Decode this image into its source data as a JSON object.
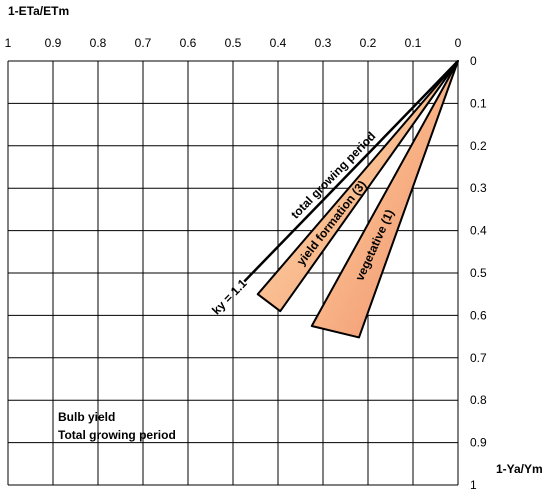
{
  "chart_data": {
    "type": "line",
    "x_axis_title": "1-ETa/ETm",
    "y_axis_title": "1-Ya/Ym",
    "x_ticks": [
      "1",
      "0.9",
      "0.8",
      "0.7",
      "0.6",
      "0.5",
      "0.4",
      "0.3",
      "0.2",
      "0.1",
      "0"
    ],
    "y_ticks": [
      "0",
      "0.1",
      "0.2",
      "0.3",
      "0.4",
      "0.5",
      "0.6",
      "0.7",
      "0.8",
      "0.9",
      "1"
    ],
    "x_tick_values": [
      1,
      0.9,
      0.8,
      0.7,
      0.6,
      0.5,
      0.4,
      0.3,
      0.2,
      0.1,
      0
    ],
    "y_tick_values": [
      0,
      0.1,
      0.2,
      0.3,
      0.4,
      0.5,
      0.6,
      0.7,
      0.8,
      0.9,
      1
    ],
    "xlim": [
      1,
      0
    ],
    "ylim": [
      0,
      1
    ],
    "grid": true,
    "wedges": [
      {
        "label": "vegetative (1)",
        "color": "#f08a6a",
        "edge_upper": {
          "x": [
            0,
            0.22
          ],
          "y": [
            0,
            0.652
          ]
        },
        "edge_lower": {
          "x": [
            0,
            0.325
          ],
          "y": [
            0,
            0.625
          ]
        }
      },
      {
        "label": "yield formation (3)",
        "color": "#f6a178",
        "edge_upper": {
          "x": [
            0,
            0.395
          ],
          "y": [
            0,
            0.59
          ]
        },
        "edge_lower": {
          "x": [
            0,
            0.445
          ],
          "y": [
            0,
            0.55
          ]
        }
      }
    ],
    "line": {
      "label": "total growing period",
      "ky_label": "ky = 1.1",
      "color": "#000000",
      "x": [
        0,
        0.475
      ],
      "y": [
        0,
        0.52
      ]
    },
    "annotation_lines": [
      "Bulb yield",
      "Total growing period"
    ]
  }
}
